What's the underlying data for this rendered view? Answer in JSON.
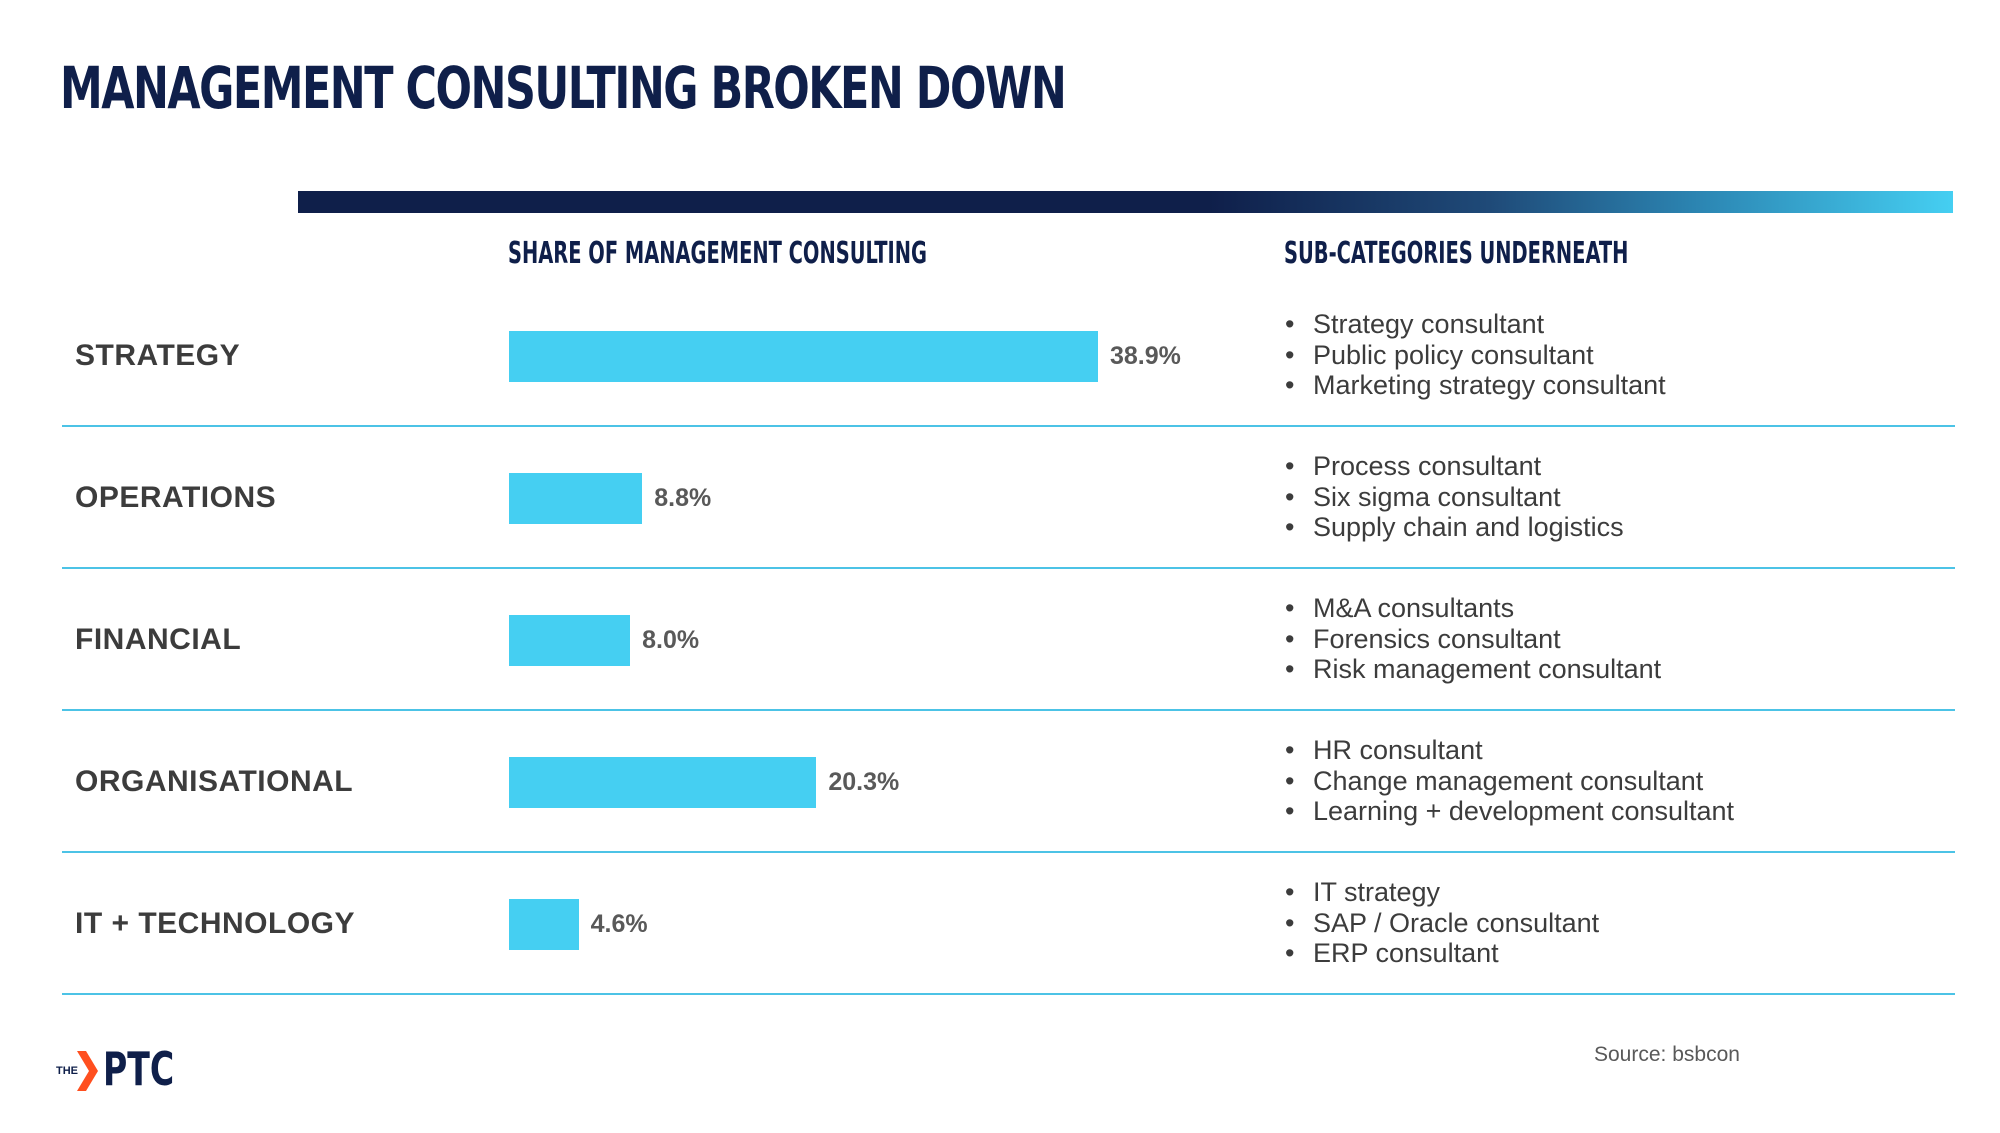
{
  "slide": {
    "title": "MANAGEMENT CONSULTING BROKEN DOWN",
    "share_header": "SHARE OF MANAGEMENT CONSULTING",
    "sub_header": "SUB-CATEGORIES UNDERNEATH",
    "source": "Source: bsbcon",
    "logo_the": "THE",
    "logo_name": "PTC"
  },
  "colors": {
    "navy": "#0f1f4a",
    "bar": "#45cff2",
    "accent_orange": "#ff4f1f",
    "divider": "#4cc3e6"
  },
  "chart_data": {
    "type": "bar",
    "orientation": "horizontal",
    "title": "SHARE OF MANAGEMENT CONSULTING",
    "unit": "%",
    "categories": [
      "STRATEGY",
      "OPERATIONS",
      "FINANCIAL",
      "ORGANISATIONAL",
      "IT + TECHNOLOGY"
    ],
    "values": [
      38.9,
      8.8,
      8.0,
      20.3,
      4.6
    ],
    "value_labels": [
      "38.9%",
      "8.8%",
      "8.0%",
      "20.3%",
      "4.6%"
    ]
  },
  "subcategories": [
    [
      "Strategy consultant",
      "Public policy consultant",
      "Marketing strategy consultant"
    ],
    [
      "Process consultant",
      "Six sigma consultant",
      "Supply chain and logistics"
    ],
    [
      "M&A consultants",
      "Forensics consultant",
      "Risk management consultant"
    ],
    [
      "HR consultant",
      "Change management consultant",
      "Learning + development consultant"
    ],
    [
      "IT strategy",
      "SAP / Oracle consultant",
      "ERP consultant"
    ]
  ]
}
